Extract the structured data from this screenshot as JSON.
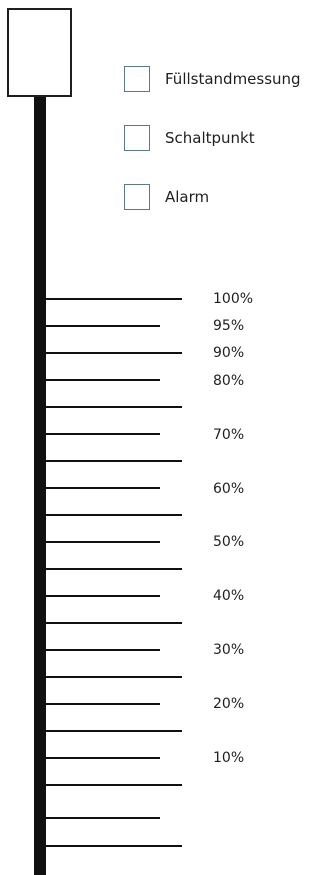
{
  "legend": [
    {
      "label": "Füllstandmessung"
    },
    {
      "label": "Schaltpunkt"
    },
    {
      "label": "Alarm"
    }
  ],
  "scale": {
    "labels": [
      "100%",
      "95%",
      "90%",
      "80%",
      "70%",
      "60%",
      "50%",
      "40%",
      "30%",
      "20%",
      "10%"
    ]
  }
}
